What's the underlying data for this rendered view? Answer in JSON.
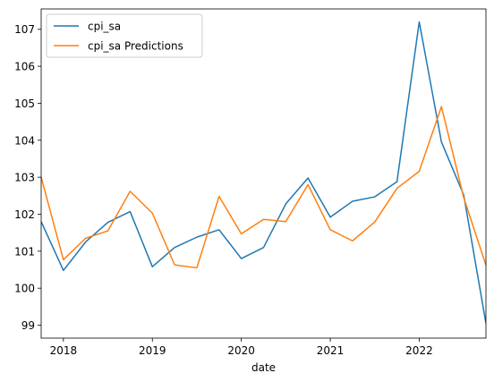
{
  "chart_data": {
    "type": "line",
    "xlabel": "date",
    "ylabel": "",
    "xlim": [
      2017.75,
      2022.75
    ],
    "ylim": [
      98.65,
      107.55
    ],
    "x_ticks": [
      2018,
      2019,
      2020,
      2021,
      2022
    ],
    "x_tick_labels": [
      "2018",
      "2019",
      "2020",
      "2021",
      "2022"
    ],
    "y_ticks": [
      99,
      100,
      101,
      102,
      103,
      104,
      105,
      106,
      107
    ],
    "y_tick_labels": [
      "99",
      "100",
      "101",
      "102",
      "103",
      "104",
      "105",
      "106",
      "107"
    ],
    "x": [
      2017.75,
      2018.0,
      2018.25,
      2018.5,
      2018.75,
      2019.0,
      2019.25,
      2019.5,
      2019.75,
      2020.0,
      2020.25,
      2020.5,
      2020.75,
      2021.0,
      2021.25,
      2021.5,
      2021.75,
      2022.0,
      2022.25,
      2022.5,
      2022.75
    ],
    "series": [
      {
        "name": "cpi_sa",
        "color": "#1f77b4",
        "values": [
          101.8,
          100.48,
          101.25,
          101.78,
          102.07,
          100.58,
          101.1,
          101.38,
          101.58,
          100.8,
          101.1,
          102.28,
          102.98,
          101.92,
          102.35,
          102.47,
          102.88,
          107.2,
          103.95,
          102.52,
          99.05
        ]
      },
      {
        "name": "cpi_sa Predictions",
        "color": "#ff7f0e",
        "values": [
          103.0,
          100.77,
          101.35,
          101.55,
          102.62,
          102.03,
          100.63,
          100.55,
          102.48,
          101.47,
          101.86,
          101.8,
          102.8,
          101.58,
          101.28,
          101.79,
          102.7,
          103.16,
          104.91,
          102.45,
          100.62
        ]
      }
    ],
    "grid": false,
    "legend_position": "top-left"
  }
}
